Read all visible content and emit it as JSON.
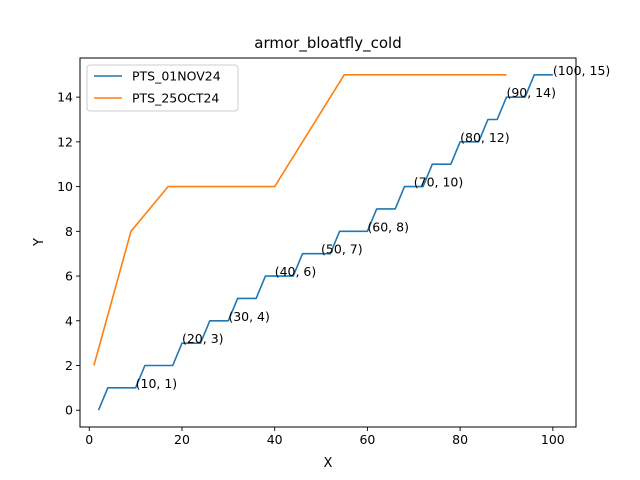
{
  "chart_data": {
    "type": "line",
    "title": "armor_bloatfly_cold",
    "xlabel": "X",
    "ylabel": "Y",
    "xlim": [
      -2,
      105
    ],
    "ylim": [
      -0.75,
      15.75
    ],
    "xticks": [
      0,
      20,
      40,
      60,
      80,
      100
    ],
    "yticks": [
      0,
      2,
      4,
      6,
      8,
      10,
      12,
      14
    ],
    "grid": false,
    "legend_position": "upper-left",
    "series": [
      {
        "name": "PTS_01NOV24",
        "color": "#1f77b4",
        "x": [
          2,
          4,
          10,
          12,
          18,
          20,
          24,
          26,
          30,
          32,
          36,
          38,
          44,
          46,
          48,
          50,
          52,
          54,
          60,
          62,
          66,
          68,
          72,
          74,
          78,
          80,
          84,
          86,
          88,
          90,
          94,
          96,
          100
        ],
        "y": [
          0,
          1,
          1,
          2,
          2,
          3,
          3,
          4,
          4,
          5,
          5,
          6,
          6,
          7,
          7,
          7,
          7,
          8,
          8,
          9,
          9,
          10,
          10,
          11,
          11,
          12,
          12,
          13,
          13,
          14,
          14,
          15,
          15
        ]
      },
      {
        "name": "PTS_25OCT24",
        "color": "#ff7f0e",
        "x": [
          1,
          9,
          17,
          40,
          55,
          90
        ],
        "y": [
          2,
          8,
          10,
          10,
          15,
          15
        ]
      }
    ],
    "annotations": [
      {
        "text": "(10, 1)",
        "x": 10,
        "y": 1
      },
      {
        "text": "(20, 3)",
        "x": 20,
        "y": 3
      },
      {
        "text": "(30, 4)",
        "x": 30,
        "y": 4
      },
      {
        "text": "(40, 6)",
        "x": 40,
        "y": 6
      },
      {
        "text": "(50, 7)",
        "x": 50,
        "y": 7
      },
      {
        "text": "(60, 8)",
        "x": 60,
        "y": 8
      },
      {
        "text": "(70, 10)",
        "x": 70,
        "y": 10
      },
      {
        "text": "(80, 12)",
        "x": 80,
        "y": 12
      },
      {
        "text": "(90, 14)",
        "x": 90,
        "y": 14
      },
      {
        "text": "(100, 15)",
        "x": 100,
        "y": 15
      }
    ]
  }
}
